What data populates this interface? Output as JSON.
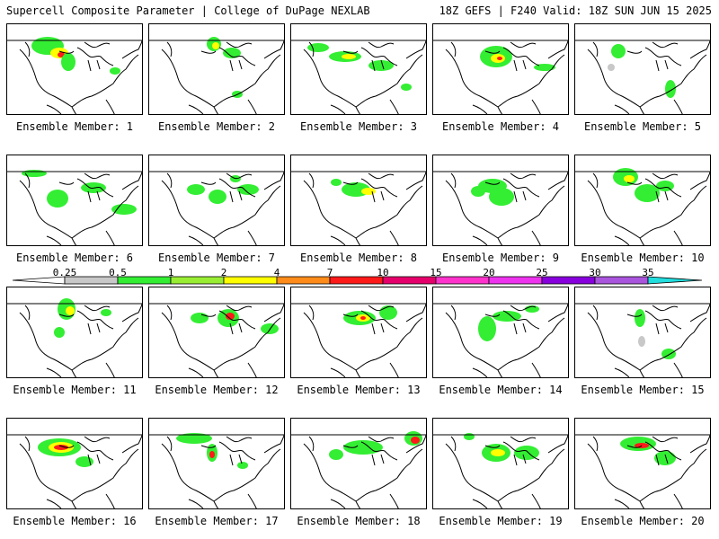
{
  "header": {
    "left_title": "Supercell Composite Parameter | College of DuPage NEXLAB",
    "right_title": "18Z GEFS | F240 Valid: 18Z SUN JUN 15 2025"
  },
  "members": [
    {
      "label": "Ensemble Member: 1"
    },
    {
      "label": "Ensemble Member: 2"
    },
    {
      "label": "Ensemble Member: 3"
    },
    {
      "label": "Ensemble Member: 4"
    },
    {
      "label": "Ensemble Member: 5"
    },
    {
      "label": "Ensemble Member: 6"
    },
    {
      "label": "Ensemble Member: 7"
    },
    {
      "label": "Ensemble Member: 8"
    },
    {
      "label": "Ensemble Member: 9"
    },
    {
      "label": "Ensemble Member: 10"
    },
    {
      "label": "Ensemble Member: 11"
    },
    {
      "label": "Ensemble Member: 12"
    },
    {
      "label": "Ensemble Member: 13"
    },
    {
      "label": "Ensemble Member: 14"
    },
    {
      "label": "Ensemble Member: 15"
    },
    {
      "label": "Ensemble Member: 16"
    },
    {
      "label": "Ensemble Member: 17"
    },
    {
      "label": "Ensemble Member: 18"
    },
    {
      "label": "Ensemble Member: 19"
    },
    {
      "label": "Ensemble Member: 20"
    }
  ],
  "colorbar": {
    "ticks": [
      "0.25",
      "0.5",
      "1",
      "2",
      "4",
      "7",
      "10",
      "15",
      "20",
      "25",
      "30",
      "35"
    ],
    "colors": [
      "#c8c8c8",
      "#33ee33",
      "#99ee33",
      "#ffff00",
      "#ff8c1a",
      "#ff1a1a",
      "#e6006b",
      "#ff33cc",
      "#ee33ee",
      "#8800dd",
      "#aa55dd",
      "#22dddd"
    ]
  }
}
